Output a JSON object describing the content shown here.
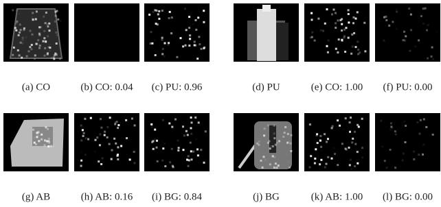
{
  "panels": [
    {
      "caption": "(a) CO"
    },
    {
      "caption": "(b) CO: 0.04"
    },
    {
      "caption": "(c) PU: 0.96"
    },
    {
      "caption": "(d) PU"
    },
    {
      "caption": "(e) CO: 1.00"
    },
    {
      "caption": "(f) PU: 0.00"
    },
    {
      "caption": "(g) AB"
    },
    {
      "caption": "(h) AB: 0.16"
    },
    {
      "caption": "(i) BG: 0.84"
    },
    {
      "caption": "(j) BG"
    },
    {
      "caption": "(k) AB: 1.00"
    },
    {
      "caption": "(l) BG: 0.00"
    }
  ]
}
